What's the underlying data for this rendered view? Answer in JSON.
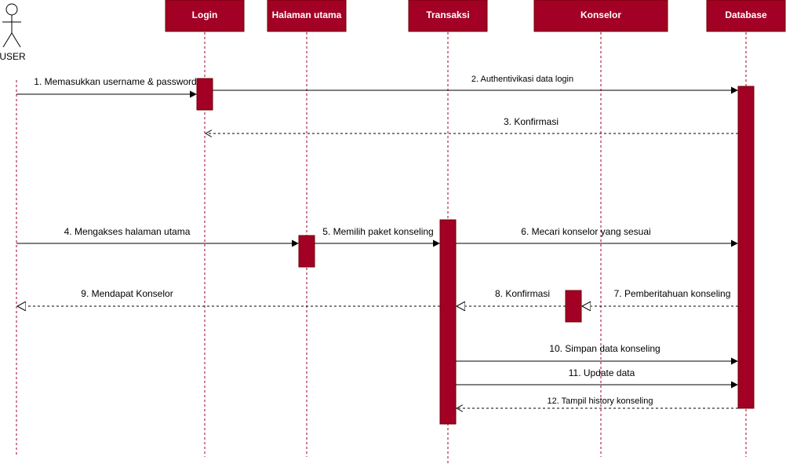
{
  "diagram": {
    "actor": {
      "label": "USER"
    },
    "participants": [
      {
        "label": "Login"
      },
      {
        "label": "Halaman utama"
      },
      {
        "label": "Transaksi"
      },
      {
        "label": "Konselor"
      },
      {
        "label": "Database"
      }
    ],
    "messages": [
      {
        "label": "1. Memasukkan username & password"
      },
      {
        "label": "2. Authentivikasi data login"
      },
      {
        "label": "3. Konfirmasi"
      },
      {
        "label": "4. Mengakses halaman utama"
      },
      {
        "label": "5. Memilih paket konseling"
      },
      {
        "label": "6. Mecari konselor yang sesuai"
      },
      {
        "label": "7. Pemberitahuan konseling"
      },
      {
        "label": "8. Konfirmasi"
      },
      {
        "label": "9. Mendapat Konselor"
      },
      {
        "label": "10. Simpan data konseling"
      },
      {
        "label": "11. Update data"
      },
      {
        "label": "12. Tampil history konseling"
      }
    ],
    "colors": {
      "participant_fill": "#a20025",
      "participant_stroke": "#6f0000",
      "lifeline": "#a20025"
    }
  }
}
